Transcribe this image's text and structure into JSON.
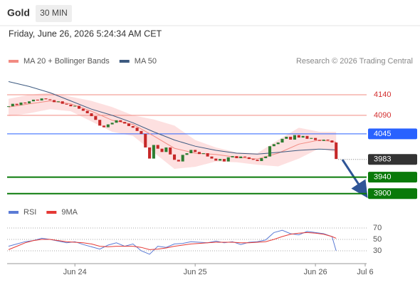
{
  "header": {
    "symbol": "Gold",
    "interval": "30 MIN",
    "timestamp": "Friday, June 26, 2026 5:24:34 AM CET",
    "copyright": "Research © 2026 Trading Central"
  },
  "chart_data": [
    {
      "type": "candlestick",
      "x": [
        0,
        1,
        2,
        3,
        4,
        5,
        6,
        7,
        8,
        9,
        10,
        11,
        12,
        13,
        14,
        15,
        16,
        17,
        18,
        19,
        20,
        21,
        22,
        23,
        24,
        25,
        26,
        27,
        28,
        29,
        30,
        31,
        32,
        33,
        34,
        35,
        36,
        37,
        38,
        39,
        40,
        41,
        42,
        43,
        44,
        45,
        46,
        47,
        48,
        49,
        50,
        51,
        52,
        53,
        54,
        55,
        56,
        57,
        58,
        59,
        60,
        61,
        62,
        63,
        64,
        65,
        66,
        67,
        68,
        69,
        70,
        71,
        72,
        73,
        74,
        75,
        76,
        77,
        78,
        79
      ],
      "values": [
        4112,
        4118,
        4115,
        4121,
        4119,
        4124,
        4128,
        4126,
        4131,
        4129,
        4127,
        4122,
        4124,
        4118,
        4116,
        4112,
        4113,
        4106,
        4101,
        4095,
        4088,
        4079,
        4065,
        4061,
        4068,
        4072,
        4078,
        4074,
        4070,
        4064,
        4060,
        4052,
        4045,
        4012,
        3985,
        4018,
        4009,
        4001,
        4012,
        3995,
        3982,
        3978,
        3994,
        3998,
        4006,
        4001,
        3996,
        3998,
        3990,
        3985,
        3980,
        3984,
        3978,
        3988,
        3991,
        3986,
        3990,
        3988,
        3984,
        3982,
        3979,
        3986,
        3990,
        4015,
        4020,
        4024,
        4033,
        4038,
        4031,
        4042,
        4036,
        4040,
        4033,
        4035,
        4030,
        4028,
        4031,
        4029,
        4024,
        3984
      ],
      "up_color": "#2e7d32",
      "down_color": "#c62828",
      "series": [
        {
          "name": "MA 20 + Bollinger Bands",
          "color": "#f28b82",
          "band_color": "#fde0e0",
          "x": [
            0,
            5,
            10,
            15,
            20,
            25,
            30,
            35,
            40,
            45,
            50,
            55,
            60,
            65,
            70,
            75,
            79
          ],
          "values": [
            4110,
            4118,
            4125,
            4118,
            4100,
            4078,
            4068,
            4040,
            4010,
            3998,
            3995,
            3988,
            3984,
            3998,
            4020,
            4030,
            4025
          ],
          "upper": [
            4130,
            4140,
            4145,
            4135,
            4125,
            4110,
            4090,
            4080,
            4065,
            4030,
            4012,
            4000,
            3998,
            4030,
            4060,
            4050,
            4050
          ],
          "lower": [
            4088,
            4095,
            4105,
            4100,
            4075,
            4050,
            4040,
            4000,
            3960,
            3965,
            3978,
            3976,
            3970,
            3966,
            3985,
            4010,
            4000
          ]
        },
        {
          "name": "MA 50",
          "color": "#3d5a80",
          "x": [
            0,
            5,
            10,
            15,
            20,
            25,
            30,
            35,
            40,
            45,
            50,
            55,
            60,
            65,
            70,
            75,
            79
          ],
          "values": [
            4172,
            4160,
            4145,
            4125,
            4105,
            4090,
            4072,
            4050,
            4030,
            4015,
            4005,
            3998,
            3996,
            4000,
            4005,
            4008,
            4006
          ]
        }
      ],
      "levels": [
        {
          "value": 4140,
          "color": "#f28b82",
          "text_color": "#d32f2f",
          "box": false
        },
        {
          "value": 4090,
          "color": "#f28b82",
          "text_color": "#d32f2f",
          "box": false
        },
        {
          "value": 4045,
          "color": "#2962ff",
          "text_color": "#ffffff",
          "box": true
        },
        {
          "value": 3983,
          "color": "#333333",
          "text_color": "#ffffff",
          "box": true,
          "dotted": true
        },
        {
          "value": 3940,
          "color": "#0a7a0a",
          "text_color": "#ffffff",
          "box": true
        },
        {
          "value": 3900,
          "color": "#0a7a0a",
          "text_color": "#ffffff",
          "box": true
        }
      ],
      "xlim": [
        0,
        86
      ],
      "ylim": [
        3877,
        4197
      ]
    },
    {
      "type": "line",
      "series": [
        {
          "name": "RSI",
          "color": "#5b7bd5",
          "x": [
            0,
            2,
            4,
            6,
            8,
            10,
            12,
            14,
            16,
            18,
            20,
            22,
            24,
            26,
            28,
            30,
            32,
            34,
            36,
            38,
            40,
            42,
            44,
            46,
            48,
            50,
            52,
            54,
            56,
            58,
            60,
            62,
            64,
            66,
            68,
            70,
            72,
            74,
            76,
            78,
            79
          ],
          "values": [
            38,
            42,
            46,
            48,
            52,
            50,
            47,
            44,
            46,
            41,
            37,
            33,
            40,
            44,
            38,
            42,
            30,
            24,
            38,
            36,
            42,
            43,
            46,
            45,
            44,
            47,
            44,
            46,
            41,
            45,
            46,
            49,
            62,
            66,
            60,
            58,
            64,
            62,
            60,
            55,
            30
          ]
        },
        {
          "name": "9MA",
          "color": "#e53935",
          "x": [
            0,
            2,
            4,
            6,
            8,
            10,
            12,
            14,
            16,
            18,
            20,
            22,
            24,
            26,
            28,
            30,
            32,
            34,
            36,
            38,
            40,
            42,
            44,
            46,
            48,
            50,
            52,
            54,
            56,
            58,
            60,
            62,
            64,
            66,
            68,
            70,
            72,
            74,
            76,
            78,
            79
          ],
          "values": [
            32,
            38,
            44,
            48,
            50,
            50,
            48,
            46,
            45,
            44,
            42,
            38,
            37,
            38,
            38,
            38,
            36,
            32,
            33,
            35,
            38,
            40,
            42,
            43,
            44,
            45,
            45,
            45,
            44,
            44,
            45,
            46,
            50,
            55,
            59,
            61,
            62,
            61,
            59,
            55,
            52
          ]
        }
      ],
      "xlim": [
        0,
        86
      ],
      "ylim": [
        5,
        100
      ],
      "yticks": [
        30,
        50,
        70
      ],
      "xticks": [
        {
          "value": 16,
          "label": "Jun 24"
        },
        {
          "value": 45,
          "label": "Jun 25"
        },
        {
          "value": 74,
          "label": "Jun 26"
        },
        {
          "value": 86,
          "label": "Jul 6"
        }
      ]
    }
  ]
}
